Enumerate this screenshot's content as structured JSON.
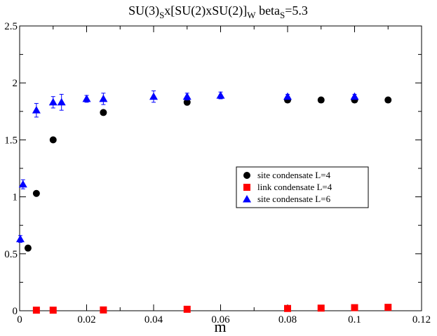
{
  "chart_data": {
    "type": "scatter",
    "title": {
      "parts": [
        {
          "text": "SU(3)",
          "sub": false
        },
        {
          "text": "S",
          "sub": true
        },
        {
          "text": "x[SU(2)xSU(2)]",
          "sub": false
        },
        {
          "text": "W",
          "sub": true
        },
        {
          "text": " beta",
          "sub": false
        },
        {
          "text": "S",
          "sub": true
        },
        {
          "text": "=5.3",
          "sub": false
        }
      ]
    },
    "xlabel": "m",
    "ylabel": "",
    "xlim": [
      0,
      0.12
    ],
    "ylim": [
      0,
      2.5
    ],
    "xticks": [
      {
        "value": 0,
        "label": "0"
      },
      {
        "value": 0.02,
        "label": "0.02"
      },
      {
        "value": 0.04,
        "label": "0.04"
      },
      {
        "value": 0.06,
        "label": "0.06"
      },
      {
        "value": 0.08,
        "label": "0.08"
      },
      {
        "value": 0.1,
        "label": "0.1"
      },
      {
        "value": 0.12,
        "label": "0.12"
      }
    ],
    "yticks": [
      {
        "value": 0,
        "label": "0"
      },
      {
        "value": 0.5,
        "label": "0.5"
      },
      {
        "value": 1,
        "label": "1"
      },
      {
        "value": 1.5,
        "label": "1.5"
      },
      {
        "value": 2,
        "label": "2"
      },
      {
        "value": 2.5,
        "label": "2.5"
      }
    ],
    "grid": false,
    "legend_position": "center-right",
    "series": [
      {
        "name": "site condensate L=4",
        "marker": "circle",
        "color": "#000000",
        "points": [
          {
            "x": 0.0025,
            "y": 0.55
          },
          {
            "x": 0.005,
            "y": 1.03
          },
          {
            "x": 0.01,
            "y": 1.5
          },
          {
            "x": 0.025,
            "y": 1.74
          },
          {
            "x": 0.05,
            "y": 1.83
          },
          {
            "x": 0.08,
            "y": 1.85
          },
          {
            "x": 0.09,
            "y": 1.85
          },
          {
            "x": 0.1,
            "y": 1.85
          },
          {
            "x": 0.11,
            "y": 1.85
          }
        ]
      },
      {
        "name": "link condensate L=4",
        "marker": "square",
        "color": "#ff0000",
        "points": [
          {
            "x": 0.005,
            "y": 0.005
          },
          {
            "x": 0.01,
            "y": 0.005
          },
          {
            "x": 0.025,
            "y": 0.007
          },
          {
            "x": 0.05,
            "y": 0.013
          },
          {
            "x": 0.08,
            "y": 0.02
          },
          {
            "x": 0.09,
            "y": 0.023
          },
          {
            "x": 0.1,
            "y": 0.027
          },
          {
            "x": 0.11,
            "y": 0.03
          }
        ]
      },
      {
        "name": "site condensate L=6",
        "marker": "triangle",
        "color": "#0000ff",
        "points": [
          {
            "x": 0.0002,
            "y": 0.63,
            "err": 0.03
          },
          {
            "x": 0.001,
            "y": 1.11,
            "err": 0.04
          },
          {
            "x": 0.005,
            "y": 1.76,
            "err": 0.06
          },
          {
            "x": 0.01,
            "y": 1.83,
            "err": 0.05
          },
          {
            "x": 0.0125,
            "y": 1.83,
            "err": 0.07
          },
          {
            "x": 0.02,
            "y": 1.86,
            "err": 0.03
          },
          {
            "x": 0.025,
            "y": 1.86,
            "err": 0.05
          },
          {
            "x": 0.04,
            "y": 1.88,
            "err": 0.05
          },
          {
            "x": 0.05,
            "y": 1.88,
            "err": 0.03
          },
          {
            "x": 0.06,
            "y": 1.89,
            "err": 0.03
          },
          {
            "x": 0.08,
            "y": 1.88,
            "err": 0.02
          },
          {
            "x": 0.1,
            "y": 1.88,
            "err": 0.02
          }
        ]
      }
    ]
  }
}
